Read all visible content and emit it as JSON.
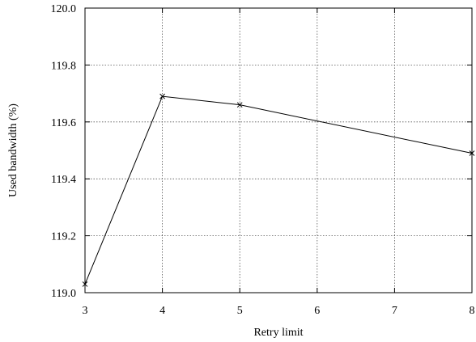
{
  "chart_data": {
    "type": "line",
    "xlabel": "Retry limit",
    "ylabel": "Used bandwidth (%)",
    "xlim": [
      3,
      8
    ],
    "ylim": [
      119.0,
      120.0
    ],
    "x_ticks": [
      "3",
      "4",
      "5",
      "6",
      "7",
      "8"
    ],
    "y_ticks": [
      "119.0",
      "119.2",
      "119.4",
      "119.6",
      "119.8",
      "120.0"
    ],
    "grid": true,
    "series": [
      {
        "marker": "x",
        "color": "#000000",
        "x": [
          3,
          4,
          5,
          8
        ],
        "y": [
          119.03,
          119.69,
          119.66,
          119.49
        ]
      }
    ]
  }
}
